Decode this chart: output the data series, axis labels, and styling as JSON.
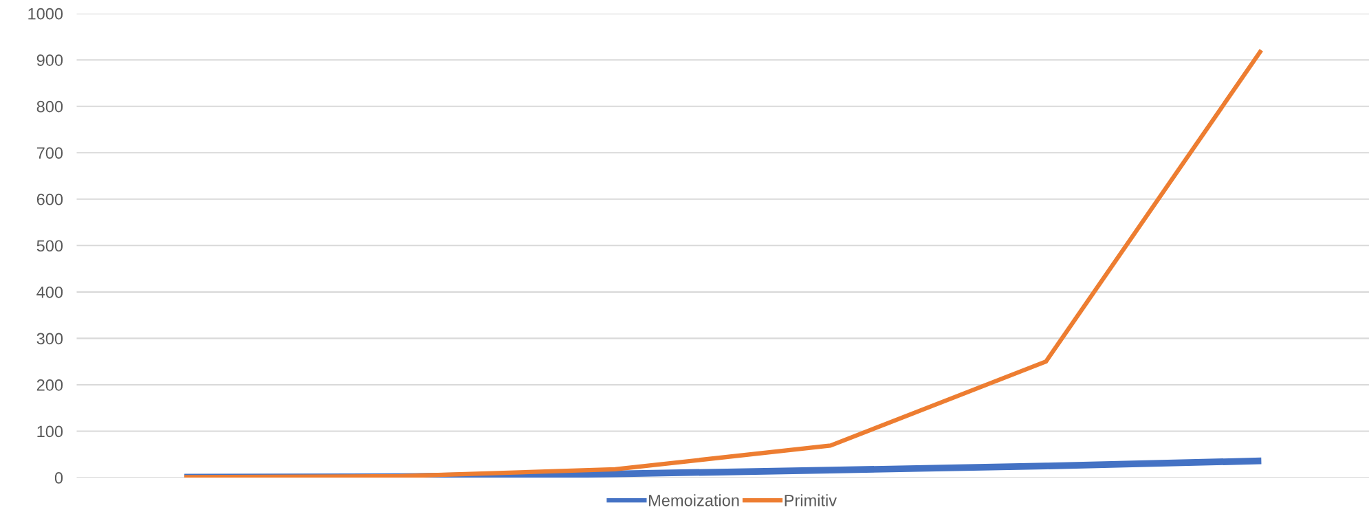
{
  "chart_data": {
    "type": "line",
    "categories": [
      null,
      null,
      null,
      null,
      null,
      null
    ],
    "series": [
      {
        "name": "Memoization",
        "color": "#4472c4",
        "values": [
          1,
          2,
          8,
          16,
          25,
          36
        ]
      },
      {
        "name": "Primitiv",
        "color": "#ed7d31",
        "values": [
          1,
          3,
          18,
          69,
          250,
          921
        ]
      }
    ],
    "ylim": [
      0,
      1000
    ],
    "yticks": [
      0,
      100,
      200,
      300,
      400,
      500,
      600,
      700,
      800,
      900,
      1000
    ],
    "grid": "y",
    "legend": "bottom",
    "marker": "none",
    "line_style": "solid"
  }
}
